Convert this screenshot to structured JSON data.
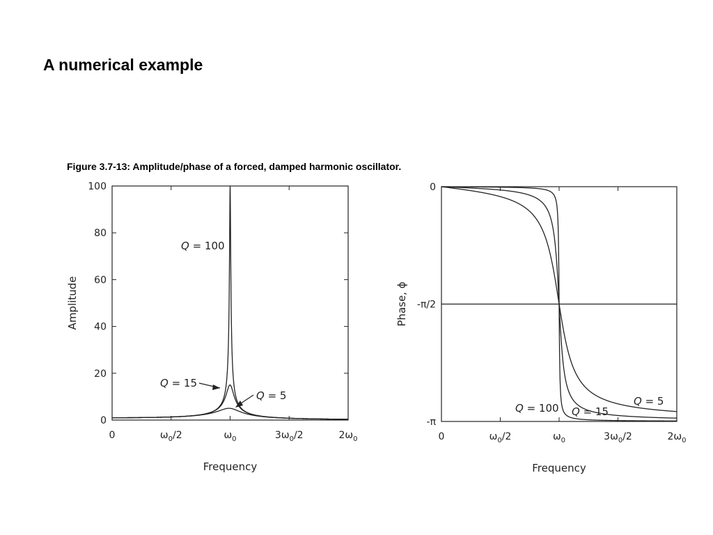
{
  "slide": {
    "title": "A numerical example"
  },
  "figure": {
    "caption": "Figure 3.7-13: Amplitude/phase of a forced, damped harmonic oscillator."
  },
  "chart_data": [
    {
      "type": "line",
      "xlabel": "Frequency",
      "ylabel": "Amplitude",
      "xlim": [
        0,
        2
      ],
      "ylim": [
        0,
        100
      ],
      "x_ticks": [
        {
          "value": 0,
          "label": "0"
        },
        {
          "value": 0.5,
          "label": "ω0/2"
        },
        {
          "value": 1,
          "label": "ω0"
        },
        {
          "value": 1.5,
          "label": "3ω0/2"
        },
        {
          "value": 2,
          "label": "2ω0"
        }
      ],
      "y_ticks": [
        {
          "value": 0,
          "label": "0"
        },
        {
          "value": 20,
          "label": "20"
        },
        {
          "value": 40,
          "label": "40"
        },
        {
          "value": 60,
          "label": "60"
        },
        {
          "value": 80,
          "label": "80"
        },
        {
          "value": 100,
          "label": "100"
        }
      ],
      "series": [
        {
          "name": "Q = 100",
          "Q": 100,
          "x": [
            0,
            0.25,
            0.5,
            0.8,
            0.9,
            0.95,
            0.98,
            0.99,
            1,
            1.01,
            1.02,
            1.05,
            1.1,
            1.2,
            1.5,
            2
          ],
          "y": [
            1,
            1.07,
            1.33,
            2.78,
            5.26,
            10.2,
            24.5,
            44.7,
            100,
            44.3,
            24.0,
            9.76,
            4.76,
            2.27,
            0.8,
            0.33
          ]
        },
        {
          "name": "Q = 15",
          "Q": 15,
          "x": [
            0,
            0.25,
            0.5,
            0.8,
            0.9,
            0.95,
            0.98,
            1,
            1.02,
            1.05,
            1.1,
            1.2,
            1.5,
            2
          ],
          "y": [
            1,
            1.07,
            1.33,
            2.74,
            4.94,
            8.2,
            12.4,
            15,
            12.2,
            7.9,
            4.4,
            2.2,
            0.8,
            0.33
          ]
        },
        {
          "name": "Q = 5",
          "Q": 5,
          "x": [
            0,
            0.25,
            0.5,
            0.8,
            0.9,
            0.95,
            1,
            1.05,
            1.1,
            1.2,
            1.5,
            2
          ],
          "y": [
            1,
            1.07,
            1.32,
            2.52,
            3.4,
            4.1,
            5,
            4.3,
            3.3,
            2.0,
            0.8,
            0.33
          ]
        }
      ],
      "annotations": [
        "Q = 100",
        "Q = 15",
        "Q = 5"
      ]
    },
    {
      "type": "line",
      "xlabel": "Frequency",
      "ylabel": "Phase, ϕ",
      "xlim": [
        0,
        2
      ],
      "ylim": [
        -3.1416,
        0
      ],
      "x_ticks": [
        {
          "value": 0,
          "label": "0"
        },
        {
          "value": 0.5,
          "label": "ω0/2"
        },
        {
          "value": 1,
          "label": "ω0"
        },
        {
          "value": 1.5,
          "label": "3ω0/2"
        },
        {
          "value": 2,
          "label": "2ω0"
        }
      ],
      "y_ticks": [
        {
          "value": 0,
          "label": "0"
        },
        {
          "value": -1.5708,
          "label": "-π/2"
        },
        {
          "value": -3.1416,
          "label": "-π"
        }
      ],
      "reference_line": {
        "y": -1.5708
      },
      "series": [
        {
          "name": "Q = 100",
          "Q": 100,
          "x": [
            0,
            0.5,
            0.9,
            0.95,
            0.98,
            0.99,
            1,
            1.01,
            1.02,
            1.05,
            1.1,
            1.5,
            2
          ],
          "y": [
            0,
            -0.007,
            -0.053,
            -0.102,
            -0.245,
            -0.422,
            -1.571,
            -2.72,
            -2.898,
            -3.04,
            -3.09,
            -3.133,
            -3.135
          ]
        },
        {
          "name": "Q = 15",
          "Q": 15,
          "x": [
            0,
            0.5,
            0.8,
            0.9,
            0.95,
            0.98,
            1,
            1.02,
            1.05,
            1.1,
            1.2,
            1.5,
            2
          ],
          "y": [
            0,
            -0.044,
            -0.148,
            -0.338,
            -0.6,
            -1.03,
            -1.571,
            -2.11,
            -2.55,
            -2.81,
            -2.98,
            -3.09,
            -3.118
          ]
        },
        {
          "name": "Q = 5",
          "Q": 5,
          "x": [
            0,
            0.25,
            0.5,
            0.8,
            0.9,
            0.95,
            1,
            1.05,
            1.1,
            1.2,
            1.5,
            2
          ],
          "y": [
            0,
            -0.053,
            -0.132,
            -0.42,
            -0.81,
            -1.1,
            -1.571,
            -2.03,
            -2.31,
            -2.6,
            -2.9,
            -3.01
          ]
        }
      ],
      "annotations": [
        "Q = 100",
        "Q = 15",
        "Q = 5"
      ]
    }
  ]
}
